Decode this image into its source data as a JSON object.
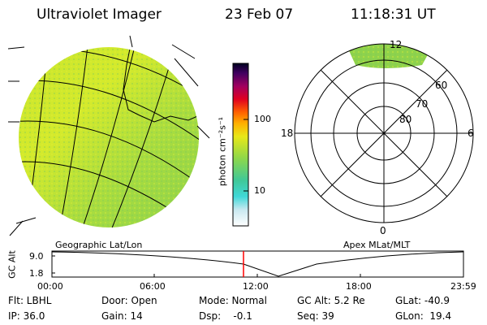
{
  "header": {
    "instrument": "Ultraviolet Imager",
    "date": "23 Feb 07",
    "time": "11:18:31 UT"
  },
  "colorbar": {
    "unit_label": "photon cm⁻²s⁻¹",
    "ticks": [
      "100",
      "10"
    ]
  },
  "panels": {
    "left_label": "Geographic Lat/Lon",
    "right_label": "Apex  MLat/MLT"
  },
  "polar": {
    "mlt_labels": {
      "top": "12",
      "left": "18",
      "right": "6",
      "bottom": "0"
    },
    "lat_labels": [
      "60",
      "70",
      "80"
    ]
  },
  "altitude_plot": {
    "ylabel": "GC Alt",
    "yticks": [
      "9.0",
      "1.8"
    ],
    "xticks": [
      "00:00",
      "06:00",
      "12:00",
      "18:00",
      "23:59"
    ],
    "current_marker": "11:18"
  },
  "info": {
    "row1": {
      "flt": "Flt: LBHL",
      "door": "Door: Open",
      "mode": "Mode: Normal",
      "gcalt": "GC Alt: 5.2 Re",
      "glat": "GLat: -40.9"
    },
    "row2": {
      "ip": "IP: 36.0",
      "gain": "Gain: 14",
      "dsp": "Dsp:    -0.1",
      "seq": "Seq: 39",
      "glon": "GLon:  19.4"
    }
  }
}
